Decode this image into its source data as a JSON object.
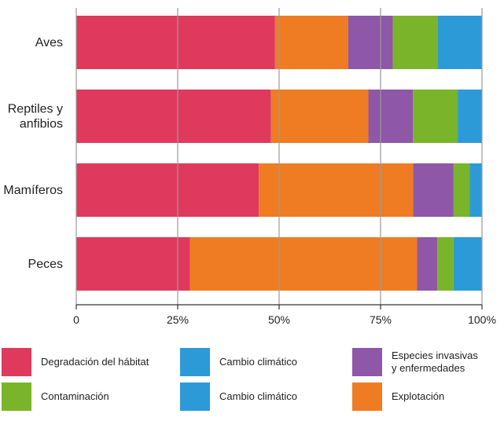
{
  "chart_data": {
    "type": "bar",
    "orientation": "horizontal",
    "stacked": true,
    "categories": [
      "Aves",
      "Reptiles y\nanfibios",
      "Mamíferos",
      "Peces"
    ],
    "series": [
      {
        "name": "Degradación del hábitat",
        "color": "#df3a5e",
        "values": [
          49,
          48,
          45,
          28
        ]
      },
      {
        "name": "Explotación",
        "color": "#ef7c22",
        "values": [
          18,
          24,
          38,
          56
        ]
      },
      {
        "name": "Especies invasivas\ny enfermedades",
        "color": "#8e57a7",
        "values": [
          11,
          11,
          10,
          5
        ]
      },
      {
        "name": "Contaminación",
        "color": "#7ab42a",
        "values": [
          11,
          11,
          4,
          4
        ]
      },
      {
        "name": "Cambio climático",
        "color": "#2d9ad8",
        "values": [
          11,
          6,
          3,
          7
        ]
      }
    ],
    "x_ticks": [
      "0",
      "25%",
      "50%",
      "75%",
      "100%"
    ],
    "xlim": [
      0,
      100
    ],
    "grid": true,
    "legend_position": "bottom"
  },
  "legend_layout": [
    [
      0,
      4,
      2
    ],
    [
      3,
      4,
      1
    ]
  ]
}
